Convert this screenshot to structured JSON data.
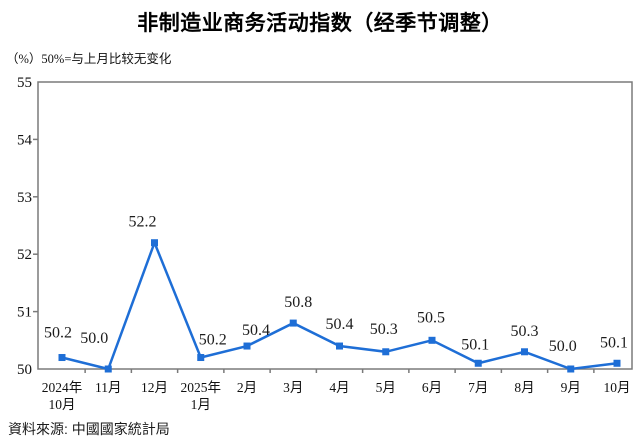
{
  "title": "非制造业商务活动指数（经季节调整）",
  "subtitle": "（%）50%=与上月比较无变化",
  "source_note": "資料來源: 中國國家統計局",
  "chart_data": {
    "type": "line",
    "title": "非制造业商务活动指数（经季节调整）",
    "unit_note": "（%）50%=与上月比较无变化",
    "categories": [
      "2024年10月",
      "11月",
      "12月",
      "2025年1月",
      "2月",
      "3月",
      "4月",
      "5月",
      "6月",
      "7月",
      "8月",
      "9月",
      "10月"
    ],
    "category_label_lines": [
      [
        "2024年",
        "10月"
      ],
      [
        "11月"
      ],
      [
        "12月"
      ],
      [
        "2025年",
        "1月"
      ],
      [
        "2月"
      ],
      [
        "3月"
      ],
      [
        "4月"
      ],
      [
        "5月"
      ],
      [
        "6月"
      ],
      [
        "7月"
      ],
      [
        "8月"
      ],
      [
        "9月"
      ],
      [
        "10月"
      ]
    ],
    "values": [
      50.2,
      50.0,
      52.2,
      50.2,
      50.4,
      50.8,
      50.4,
      50.3,
      50.5,
      50.1,
      50.3,
      50.0,
      50.1
    ],
    "data_labels": [
      "50.2",
      "50.0",
      "52.2",
      "50.2",
      "50.4",
      "50.8",
      "50.4",
      "50.3",
      "50.5",
      "50.1",
      "50.3",
      "50.0",
      "50.1"
    ],
    "ylabel": "",
    "xlabel": "",
    "ylim": [
      50,
      55
    ],
    "y_ticks": [
      50,
      51,
      52,
      53,
      54,
      55
    ],
    "grid": false,
    "legend": "none",
    "marker": "square",
    "line_color": "#1e6ed6",
    "frame_color": "#7a7a7a",
    "text_color": "#111111"
  }
}
